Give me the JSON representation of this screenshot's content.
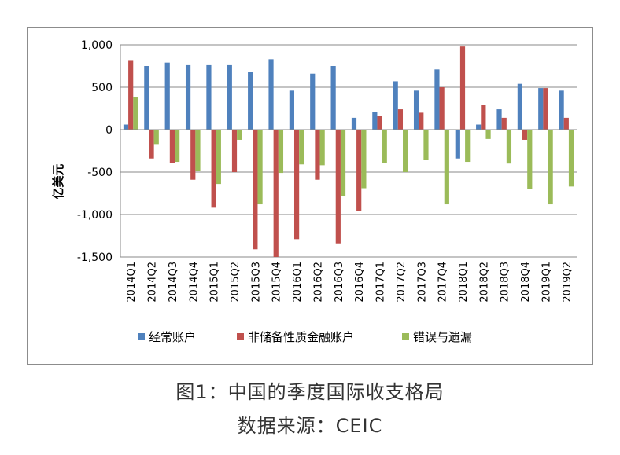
{
  "caption": {
    "title": "图1：中国的季度国际收支格局",
    "source": "数据来源：CEIC"
  },
  "chart_data": {
    "type": "bar",
    "title": "",
    "xlabel": "",
    "ylabel": "亿美元",
    "ylim": [
      -1500,
      1000
    ],
    "yticks": [
      1000,
      500,
      0,
      -500,
      -1000,
      -1500
    ],
    "ytick_labels": [
      "1,000",
      "500",
      "0",
      "-500",
      "-1,000",
      "-1,500"
    ],
    "grid": true,
    "legend_position": "bottom",
    "categories": [
      "2014Q1",
      "2014Q2",
      "2014Q3",
      "2014Q4",
      "2015Q1",
      "2015Q2",
      "2015Q3",
      "2015Q4",
      "2016Q1",
      "2016Q2",
      "2016Q3",
      "2016Q4",
      "2017Q1",
      "2017Q2",
      "2017Q3",
      "2017Q4",
      "2018Q1",
      "2018Q2",
      "2018Q3",
      "2018Q4",
      "2019Q1",
      "2019Q2"
    ],
    "series": [
      {
        "name": "经常账户",
        "color": "#4f81bd",
        "values": [
          60,
          750,
          790,
          760,
          760,
          760,
          680,
          830,
          460,
          660,
          750,
          140,
          210,
          570,
          460,
          710,
          -340,
          60,
          240,
          540,
          490,
          460
        ]
      },
      {
        "name": "非储备性质金融账户",
        "color": "#c0504d",
        "values": [
          820,
          -340,
          -390,
          -590,
          -920,
          -500,
          -1410,
          -1500,
          -1290,
          -590,
          -1340,
          -960,
          160,
          240,
          200,
          500,
          980,
          290,
          140,
          -120,
          490,
          140
        ]
      },
      {
        "name": "错误与遗漏",
        "color": "#9bbb59",
        "values": [
          380,
          -170,
          -380,
          -490,
          -640,
          -120,
          -880,
          -510,
          -410,
          -420,
          -780,
          -690,
          -390,
          -500,
          -360,
          -880,
          -380,
          -110,
          -400,
          -700,
          -880,
          -670
        ]
      }
    ]
  }
}
